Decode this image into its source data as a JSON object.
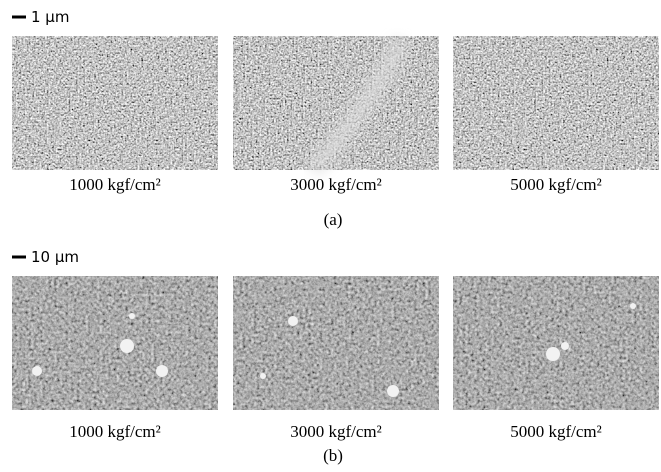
{
  "panels": [
    {
      "scale_bar": "1 μm",
      "captions": [
        "1000 kgf/cm²",
        "3000 kgf/cm²",
        "5000 kgf/cm²"
      ],
      "label": "(a)"
    },
    {
      "scale_bar": "10 μm",
      "captions": [
        "1000 kgf/cm²",
        "3000 kgf/cm²",
        "5000 kgf/cm²"
      ],
      "label": "(b)"
    }
  ]
}
